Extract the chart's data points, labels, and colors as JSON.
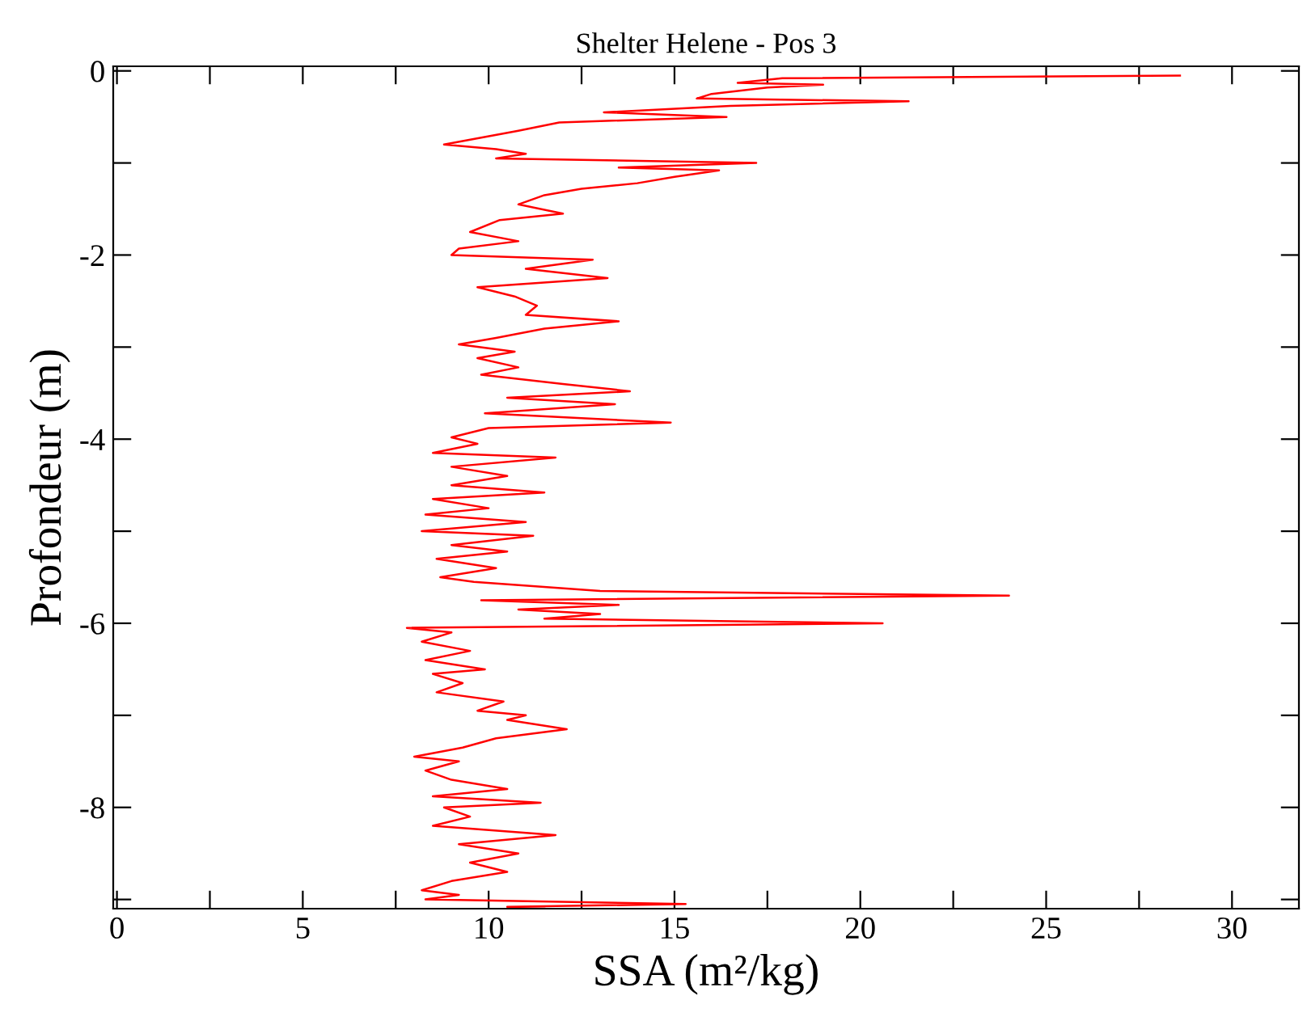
{
  "chart_data": {
    "type": "line",
    "title": "Shelter Helene - Pos 3",
    "xlabel": "SSA (m²/kg)",
    "ylabel": "Profondeur (m)",
    "xlim": [
      -0.1,
      31.8
    ],
    "ylim": [
      -9.1,
      0.05
    ],
    "xticks": [
      0,
      {
        "value": 2.5,
        "label": null
      },
      5,
      {
        "value": 7.5,
        "label": null
      },
      10,
      {
        "value": 12.5,
        "label": null
      },
      15,
      {
        "value": 17.5,
        "label": null
      },
      20,
      {
        "value": 22.5,
        "label": null
      },
      25,
      {
        "value": 27.5,
        "label": null
      },
      30
    ],
    "yticks": [
      {
        "value": -9,
        "label": null
      },
      -8,
      {
        "value": -7,
        "label": null
      },
      -6,
      {
        "value": -5,
        "label": null
      },
      -4,
      {
        "value": -3,
        "label": null
      },
      -2,
      {
        "value": -1,
        "label": null
      },
      0
    ],
    "grid": false,
    "legend": false,
    "series": [
      {
        "color": "#ff0000",
        "x": [
          28.6,
          17.9,
          16.7,
          19.0,
          17.5,
          16.0,
          15.6,
          21.3,
          16.5,
          13.1,
          16.4,
          11.9,
          10.8,
          8.8,
          10.2,
          11.0,
          10.2,
          17.2,
          13.5,
          16.2,
          15.0,
          14.0,
          12.5,
          11.5,
          10.8,
          12.0,
          10.3,
          9.5,
          10.8,
          9.2,
          9.0,
          12.8,
          11.0,
          13.2,
          9.7,
          10.7,
          11.3,
          11.0,
          13.5,
          11.5,
          10.2,
          9.2,
          10.7,
          9.7,
          10.8,
          9.8,
          12.0,
          13.8,
          10.5,
          13.4,
          9.9,
          14.9,
          10.0,
          9.0,
          9.7,
          8.5,
          11.8,
          9.0,
          10.5,
          9.0,
          11.5,
          8.5,
          10.0,
          8.3,
          11.0,
          8.2,
          11.2,
          9.0,
          10.5,
          8.6,
          10.2,
          8.7,
          9.6,
          13.0,
          24.0,
          9.8,
          13.5,
          10.8,
          13.0,
          11.5,
          20.6,
          7.8,
          9.0,
          8.2,
          9.5,
          8.3,
          9.9,
          8.5,
          9.3,
          8.6,
          10.4,
          9.7,
          11.0,
          10.5,
          12.1,
          10.2,
          9.3,
          8.0,
          9.2,
          8.3,
          9.0,
          10.5,
          8.5,
          11.4,
          8.8,
          9.5,
          8.5,
          11.8,
          9.2,
          10.8,
          9.5,
          10.5,
          9.0,
          8.2,
          9.2,
          8.3,
          15.3,
          10.5,
          11.5
        ],
        "values": [
          -0.05,
          -0.08,
          -0.13,
          -0.15,
          -0.18,
          -0.25,
          -0.3,
          -0.33,
          -0.38,
          -0.45,
          -0.5,
          -0.56,
          -0.65,
          -0.8,
          -0.85,
          -0.9,
          -0.95,
          -1.0,
          -1.05,
          -1.08,
          -1.15,
          -1.22,
          -1.28,
          -1.35,
          -1.45,
          -1.55,
          -1.62,
          -1.75,
          -1.85,
          -1.93,
          -2.0,
          -2.05,
          -2.15,
          -2.25,
          -2.35,
          -2.45,
          -2.55,
          -2.65,
          -2.72,
          -2.8,
          -2.9,
          -2.97,
          -3.05,
          -3.12,
          -3.22,
          -3.3,
          -3.4,
          -3.48,
          -3.55,
          -3.62,
          -3.72,
          -3.82,
          -3.88,
          -3.98,
          -4.05,
          -4.15,
          -4.2,
          -4.3,
          -4.4,
          -4.5,
          -4.58,
          -4.65,
          -4.75,
          -4.82,
          -4.9,
          -5.0,
          -5.05,
          -5.15,
          -5.22,
          -5.3,
          -5.4,
          -5.5,
          -5.55,
          -5.65,
          -5.7,
          -5.75,
          -5.8,
          -5.85,
          -5.9,
          -5.95,
          -6.0,
          -6.05,
          -6.1,
          -6.2,
          -6.3,
          -6.4,
          -6.5,
          -6.55,
          -6.65,
          -6.75,
          -6.85,
          -6.95,
          -7.0,
          -7.05,
          -7.15,
          -7.25,
          -7.35,
          -7.45,
          -7.5,
          -7.6,
          -7.7,
          -7.8,
          -7.88,
          -7.95,
          -8.0,
          -8.1,
          -8.2,
          -8.3,
          -8.4,
          -8.5,
          -8.6,
          -8.7,
          -8.8,
          -8.9,
          -8.95,
          -9.0,
          -9.05,
          -9.08,
          -9.1
        ]
      }
    ]
  }
}
